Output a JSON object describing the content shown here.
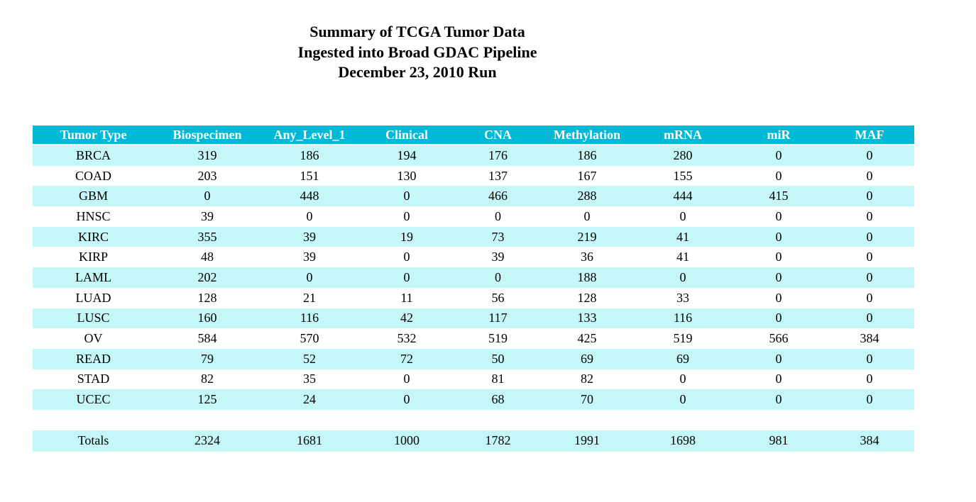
{
  "title": {
    "line1": "Summary of TCGA Tumor Data",
    "line2": "Ingested into Broad GDAC Pipeline",
    "line3": "December 23, 2010 Run"
  },
  "table": {
    "columns": [
      "Tumor Type",
      "Biospecimen",
      "Any_Level_1",
      "Clinical",
      "CNA",
      "Methylation",
      "mRNA",
      "miR",
      "MAF"
    ],
    "rows": [
      [
        "BRCA",
        319,
        186,
        194,
        176,
        186,
        280,
        0,
        0
      ],
      [
        "COAD",
        203,
        151,
        130,
        137,
        167,
        155,
        0,
        0
      ],
      [
        "GBM",
        0,
        448,
        0,
        466,
        288,
        444,
        415,
        0
      ],
      [
        "HNSC",
        39,
        0,
        0,
        0,
        0,
        0,
        0,
        0
      ],
      [
        "KIRC",
        355,
        39,
        19,
        73,
        219,
        41,
        0,
        0
      ],
      [
        "KIRP",
        48,
        39,
        0,
        39,
        36,
        41,
        0,
        0
      ],
      [
        "LAML",
        202,
        0,
        0,
        0,
        188,
        0,
        0,
        0
      ],
      [
        "LUAD",
        128,
        21,
        11,
        56,
        128,
        33,
        0,
        0
      ],
      [
        "LUSC",
        160,
        116,
        42,
        117,
        133,
        116,
        0,
        0
      ],
      [
        "OV",
        584,
        570,
        532,
        519,
        425,
        519,
        566,
        384
      ],
      [
        "READ",
        79,
        52,
        72,
        50,
        69,
        69,
        0,
        0
      ],
      [
        "STAD",
        82,
        35,
        0,
        81,
        82,
        0,
        0,
        0
      ],
      [
        "UCEC",
        125,
        24,
        0,
        68,
        70,
        0,
        0,
        0
      ]
    ],
    "totals": {
      "label": "Totals",
      "values": [
        2324,
        1681,
        1000,
        1782,
        1991,
        1698,
        981,
        384
      ]
    }
  },
  "colors": {
    "header_bg": "#00b9d6",
    "row_alt_bg": "#c5f6f8",
    "header_text": "#ffffff",
    "body_text": "#000000"
  }
}
